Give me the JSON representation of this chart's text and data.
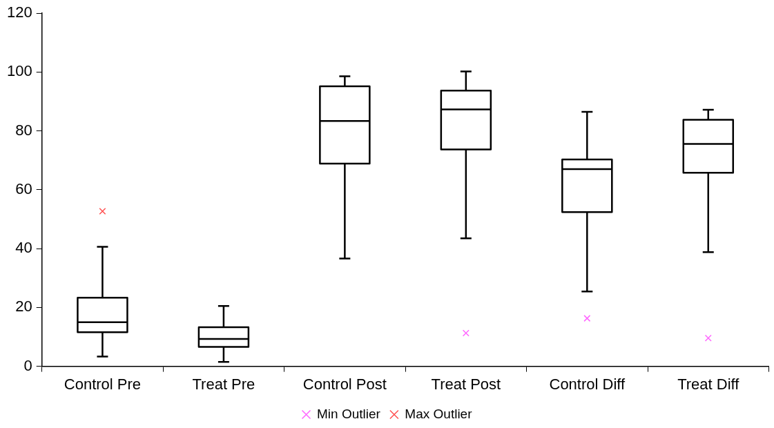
{
  "chart_data": {
    "type": "box",
    "categories": [
      "Control Pre",
      "Treat Pre",
      "Control Post",
      "Treat Post",
      "Control Diff",
      "Treat Diff"
    ],
    "ylim": [
      0,
      120
    ],
    "yticks": [
      0,
      20,
      40,
      60,
      80,
      100,
      120
    ],
    "grid": false,
    "legend": "bottom",
    "marker": "cross",
    "series": [
      {
        "color": "#000000",
        "boxes": [
          {
            "low": 3.3,
            "q1": 11.6,
            "median": 15.0,
            "q3": 23.3,
            "high": 40.6
          },
          {
            "low": 1.5,
            "q1": 6.6,
            "median": 9.3,
            "q3": 13.3,
            "high": 20.5
          },
          {
            "low": 36.6,
            "q1": 68.9,
            "median": 83.4,
            "q3": 95.2,
            "high": 98.6
          },
          {
            "low": 43.5,
            "q1": 73.7,
            "median": 87.3,
            "q3": 93.7,
            "high": 100.2
          },
          {
            "low": 25.4,
            "q1": 52.4,
            "median": 67.0,
            "q3": 70.3,
            "high": 86.5
          },
          {
            "low": 38.8,
            "q1": 65.8,
            "median": 75.6,
            "q3": 83.8,
            "high": 87.2
          }
        ]
      },
      {
        "type": "scatter",
        "name": "Min Outlier",
        "color": "#ff66ff",
        "x": [
          "Treat Post",
          "Control Diff",
          "Treat Diff"
        ],
        "values": [
          11.3,
          16.3,
          9.6
        ]
      },
      {
        "type": "scatter",
        "name": "Max Outlier",
        "color": "#ff5050",
        "x": [
          "Control Pre"
        ],
        "values": [
          52.7
        ]
      }
    ]
  }
}
